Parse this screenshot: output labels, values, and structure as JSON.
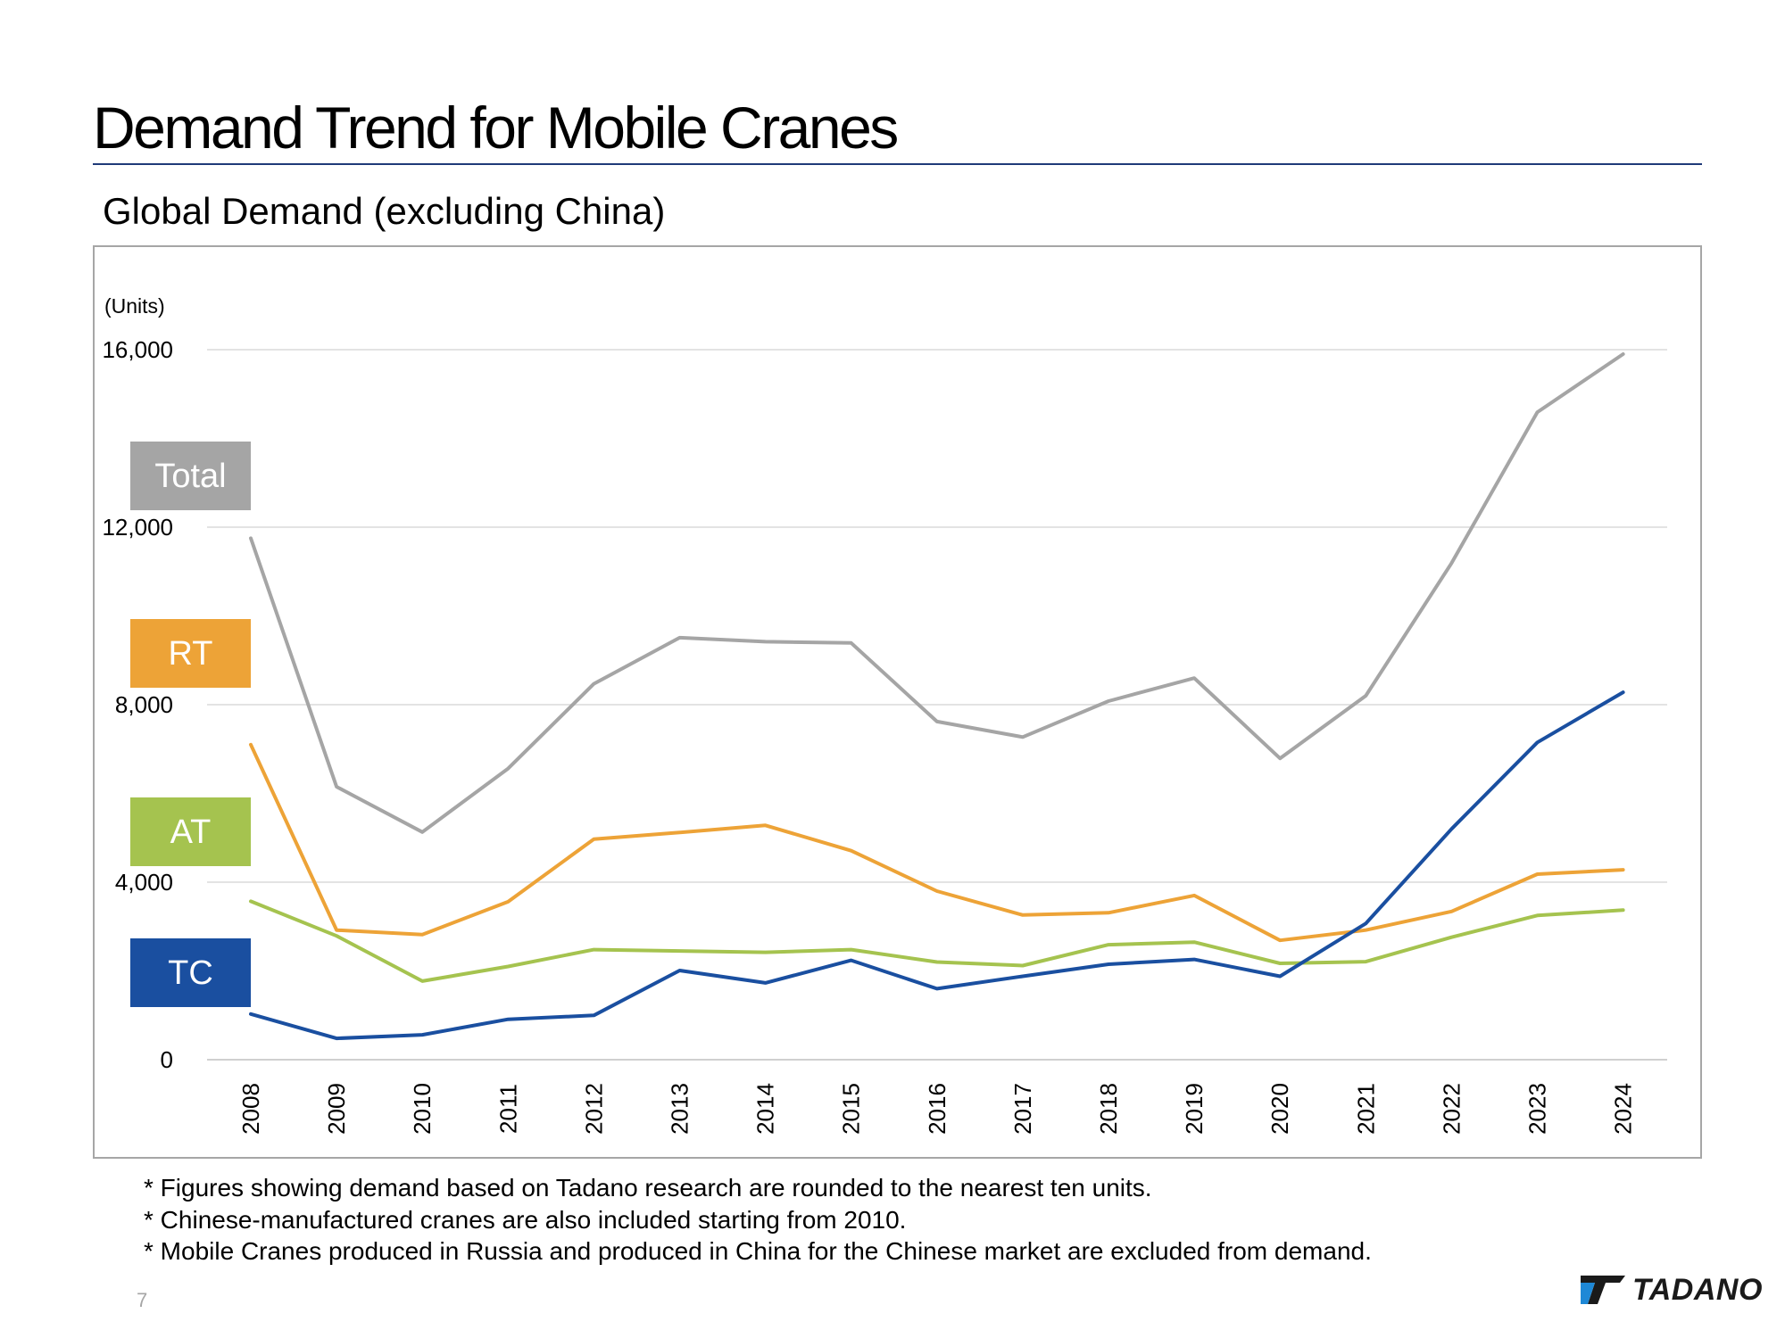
{
  "page": {
    "title": "Demand Trend for Mobile Cranes",
    "subtitle": "Global Demand (excluding China)",
    "notes": [
      "* Figures showing demand based on Tadano research are rounded to the nearest ten units.",
      "* Chinese-manufactured cranes are also included starting from 2010.",
      "* Mobile Cranes produced in Russia and produced in China for the Chinese market are excluded from demand."
    ],
    "page_number": "7",
    "logo_text": "TADANO"
  },
  "chart_data": {
    "type": "line",
    "ylabel": "(Units)",
    "ylim": [
      0,
      16000
    ],
    "yticks": [
      0,
      4000,
      8000,
      12000,
      16000
    ],
    "ytick_labels": [
      "0",
      "4,000",
      "8,000",
      "12,000",
      "16,000"
    ],
    "x": [
      "2008",
      "2009",
      "2010",
      "2011",
      "2012",
      "2013",
      "2014",
      "2015",
      "2016",
      "2017",
      "2018",
      "2019",
      "2020",
      "2021",
      "2022",
      "2023",
      "2024"
    ],
    "grid": true,
    "legend_placement": "left",
    "series": [
      {
        "name": "Total",
        "color": "#a5a5a5",
        "values": [
          11750,
          6150,
          5130,
          6560,
          8470,
          9510,
          9420,
          9390,
          7620,
          7270,
          8080,
          8600,
          6790,
          8200,
          11190,
          14590,
          15900
        ]
      },
      {
        "name": "RT",
        "color": "#eda337",
        "values": [
          7100,
          2920,
          2820,
          3560,
          4970,
          5120,
          5280,
          4710,
          3800,
          3260,
          3310,
          3700,
          2690,
          2920,
          3340,
          4180,
          4280
        ]
      },
      {
        "name": "AT",
        "color": "#a5c34f",
        "values": [
          3570,
          2790,
          1770,
          2100,
          2480,
          2450,
          2420,
          2480,
          2200,
          2120,
          2590,
          2650,
          2170,
          2210,
          2760,
          3250,
          3370
        ]
      },
      {
        "name": "TC",
        "color": "#1a4fa0",
        "values": [
          1030,
          480,
          560,
          910,
          1000,
          2010,
          1730,
          2240,
          1600,
          1880,
          2150,
          2260,
          1880,
          3070,
          5200,
          7150,
          8280
        ]
      }
    ]
  }
}
